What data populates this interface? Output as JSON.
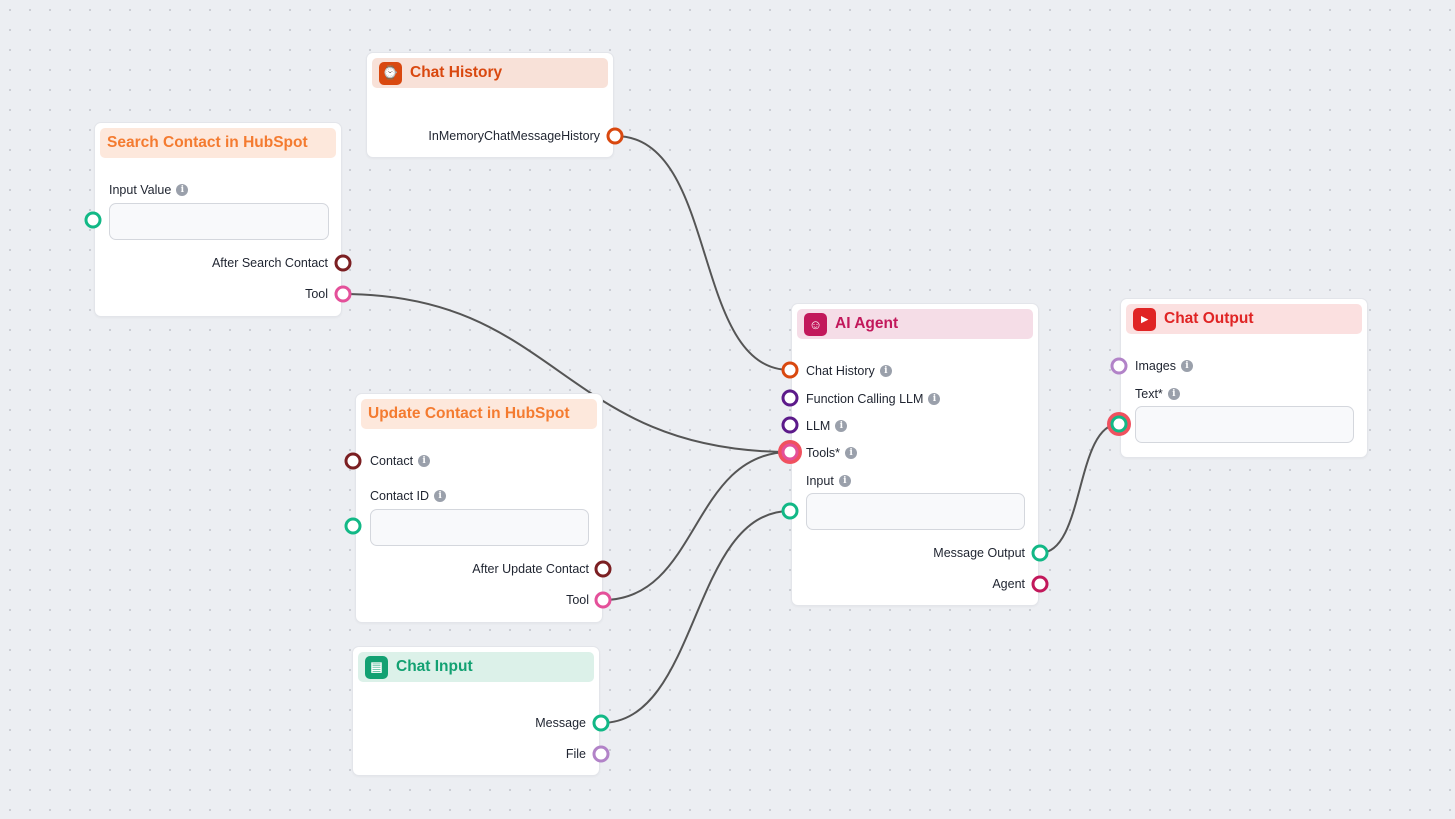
{
  "colors": {
    "orange": "#d9480f",
    "maroon": "#7b1f22",
    "pink": "#e4509a",
    "green": "#12b886",
    "purple": "#5c1a8a",
    "magenta": "#c2185b",
    "lilac": "#b283c8",
    "edge": "#555555"
  },
  "nodes": {
    "chat_history": {
      "title": "Chat History",
      "icon": "chat-history-icon",
      "output": "InMemoryChatMessageHistory"
    },
    "search_contact": {
      "title": "Search Contact in HubSpot",
      "input_label": "Input Value",
      "input_value": "",
      "outputs": [
        "After Search Contact",
        "Tool"
      ]
    },
    "update_contact": {
      "title": "Update Contact in HubSpot",
      "inputs": [
        "Contact",
        "Contact ID"
      ],
      "contact_id_value": "",
      "outputs": [
        "After Update Contact",
        "Tool"
      ]
    },
    "chat_input": {
      "title": "Chat Input",
      "icon": "chat-input-icon",
      "outputs": [
        "Message",
        "File"
      ]
    },
    "ai_agent": {
      "title": "AI Agent",
      "icon": "robot-icon",
      "inputs": [
        "Chat History",
        "Function Calling LLM",
        "LLM",
        "Tools*",
        "Input"
      ],
      "input_value": "",
      "outputs": [
        "Message Output",
        "Agent"
      ]
    },
    "chat_output": {
      "title": "Chat Output",
      "icon": "chat-output-icon",
      "inputs": [
        "Images",
        "Text*"
      ],
      "text_value": ""
    }
  },
  "info_glyph": "i"
}
